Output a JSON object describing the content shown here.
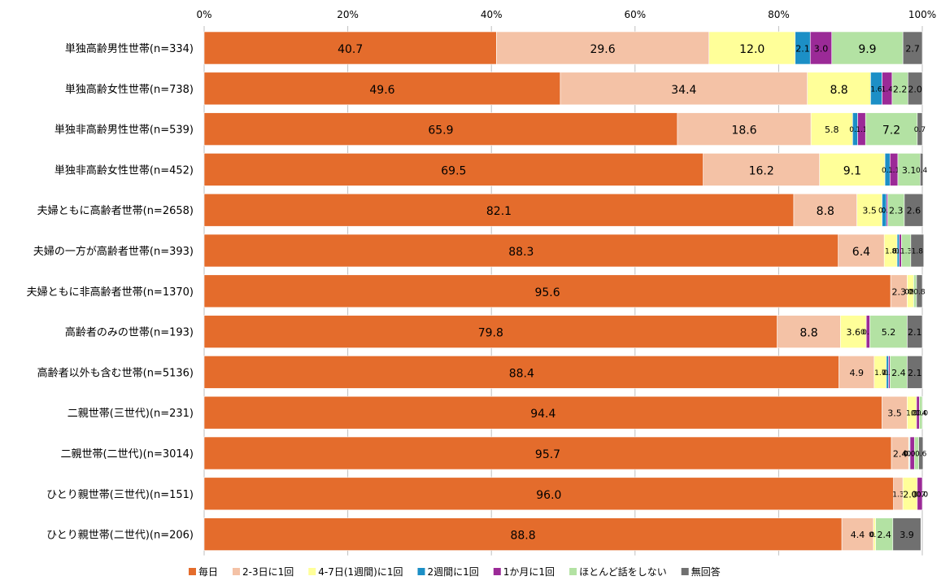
{
  "chart_data": {
    "type": "bar",
    "orientation": "horizontal",
    "stacked": "percent",
    "grid": true,
    "legend_position": "bottom",
    "x_ticks": [
      "0%",
      "20%",
      "40%",
      "60%",
      "80%",
      "100%"
    ],
    "xlim": [
      0,
      100
    ],
    "categories": [
      "単独高齢男性世帯(n=334)",
      "単独高齢女性世帯(n=738)",
      "単独非高齢男性世帯(n=539)",
      "単独非高齢女性世帯(n=452)",
      "夫婦ともに高齢者世帯(n=2658)",
      "夫婦の一方が高齢者世帯(n=393)",
      "夫婦ともに非高齢者世帯(n=1370)",
      "高齢者のみの世帯(n=193)",
      "高齢者以外も含む世帯(n=5136)",
      "二親世帯(三世代)(n=231)",
      "二親世帯(二世代)(n=3014)",
      "ひとり親世帯(三世代)(n=151)",
      "ひとり親世帯(二世代)(n=206)"
    ],
    "series": [
      {
        "name": "毎日",
        "color": "#E46C2C",
        "values": [
          40.7,
          49.6,
          65.9,
          69.5,
          82.1,
          88.3,
          95.6,
          79.8,
          88.4,
          94.4,
          95.7,
          96.0,
          88.8
        ],
        "labels": [
          "40.7",
          "49.6",
          "65.9",
          "69.5",
          "82.1",
          "88.3",
          "95.6",
          "79.8",
          "88.4",
          "94.4",
          "95.7",
          "96.0",
          "88.8"
        ]
      },
      {
        "name": "2-3日に1回",
        "color": "#F4C2A6",
        "values": [
          29.6,
          34.4,
          18.6,
          16.2,
          8.8,
          6.4,
          2.3,
          8.8,
          4.9,
          3.5,
          2.4,
          1.3,
          4.4
        ],
        "labels": [
          "29.6",
          "34.4",
          "18.6",
          "16.2",
          "8.8",
          "6.4",
          "2.3",
          "8.8",
          "4.9",
          "3.5",
          "2.4",
          "1.3",
          "4.4"
        ]
      },
      {
        "name": "4-7日(1週間)に1回",
        "color": "#FFFF99",
        "values": [
          12.0,
          8.8,
          5.8,
          9.1,
          3.5,
          1.8,
          0.9,
          3.6,
          1.7,
          1.3,
          0.1,
          2.0,
          0.3
        ],
        "labels": [
          "12.0",
          "8.8",
          "5.8",
          "9.1",
          "3.5",
          "1.8",
          "0.9",
          "3.6",
          "1.7",
          "1.3",
          "0.1",
          "2.0",
          "0.3"
        ]
      },
      {
        "name": "2週間に1回",
        "color": "#1C8FC6",
        "values": [
          2.1,
          1.6,
          0.7,
          0.7,
          0.6,
          0.3,
          0.0,
          0.0,
          0.3,
          0.0,
          0.1,
          0.0,
          0.0
        ],
        "labels": [
          "2.1",
          "1.6",
          "0.7",
          "0.7",
          "0.6",
          "0.3",
          "0.0",
          "0.0",
          "0.3",
          "0.0",
          "0.1",
          "0.0",
          "0.0"
        ]
      },
      {
        "name": "1か月に1回",
        "color": "#9B2A97",
        "values": [
          3.0,
          1.4,
          1.1,
          1.1,
          0.2,
          0.3,
          0.0,
          0.5,
          0.2,
          0.4,
          0.6,
          0.7,
          0.0
        ],
        "labels": [
          "3.0",
          "1.4",
          "1.1",
          "1.1",
          "0.2",
          "0.3",
          "0.0",
          "0.5",
          "0.2",
          "0.4",
          "0.6",
          "0.7",
          "0.0"
        ]
      },
      {
        "name": "ほとんど話をしない",
        "color": "#B3E2A3",
        "values": [
          9.9,
          2.2,
          7.2,
          3.1,
          2.3,
          1.3,
          0.4,
          5.2,
          2.4,
          0.4,
          0.6,
          0.0,
          2.4
        ],
        "labels": [
          "9.9",
          "2.2",
          "7.2",
          "3.1",
          "2.3",
          "1.3",
          "0.4",
          "5.2",
          "2.4",
          "0.4",
          "0.6",
          "0.0",
          "2.4"
        ]
      },
      {
        "name": "無回答",
        "color": "#707070",
        "values": [
          2.7,
          2.0,
          0.7,
          0.4,
          2.6,
          1.8,
          0.8,
          2.1,
          2.1,
          0.0,
          0.6,
          0.0,
          3.9
        ],
        "labels": [
          "2.7",
          "2.0",
          "0.7",
          "0.4",
          "2.6",
          "1.8",
          "0.8",
          "2.1",
          "2.1",
          "0.0",
          "0.6",
          "0.0",
          "3.9"
        ]
      }
    ]
  }
}
